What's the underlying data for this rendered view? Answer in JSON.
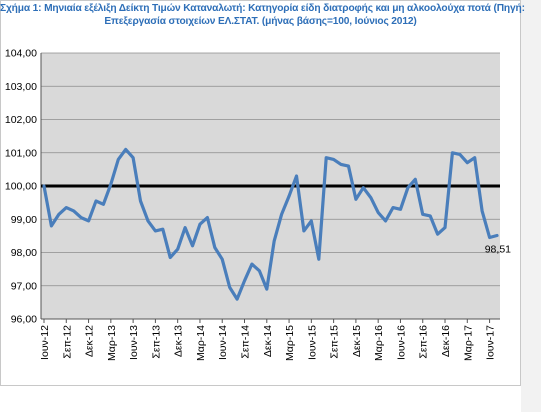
{
  "chart_data": {
    "type": "line",
    "title_lines": [
      "Σχήμα 1: Μηνιαία εξέλιξη Δείκτη Τιμών Καταναλωτή: Κατηγορία είδη διατροφής και μη αλκοολούχα ποτά (Πηγή:",
      "Επεξεργασία στοιχείων ΕΛ.ΣΤΑΤ. (μήνας βάσης=100, Ιούνιος 2012)"
    ],
    "ylim": [
      96,
      104
    ],
    "yticks": [
      "96,00",
      "97,00",
      "98,00",
      "99,00",
      "100,00",
      "101,00",
      "102,00",
      "103,00",
      "104,00"
    ],
    "xtick_labels": [
      "Ιουν-12",
      "Σεπ-12",
      "Δεκ-12",
      "Μαρ-13",
      "Ιουν-13",
      "Σεπ-13",
      "Δεκ-13",
      "Μαρ-14",
      "Ιουν-14",
      "Σεπ-14",
      "Δεκ-14",
      "Μαρ-15",
      "Ιουν-15",
      "Σεπ-15",
      "Δεκ-15",
      "Μαρ-16",
      "Ιουν-16",
      "Σεπ-16",
      "Δεκ-16",
      "Μαρ-17",
      "Ιουν-17"
    ],
    "grid": true,
    "reference_line": 100,
    "series": [
      {
        "color": "#4a7ebb",
        "values": [
          100.0,
          98.8,
          99.15,
          99.35,
          99.25,
          99.05,
          98.95,
          99.55,
          99.45,
          100.05,
          100.8,
          101.1,
          100.85,
          99.55,
          98.95,
          98.65,
          98.7,
          97.85,
          98.1,
          98.75,
          98.2,
          98.85,
          99.05,
          98.15,
          97.8,
          96.95,
          96.6,
          97.15,
          97.65,
          97.45,
          96.9,
          98.35,
          99.15,
          99.7,
          100.3,
          98.65,
          98.95,
          97.8,
          100.85,
          100.8,
          100.65,
          100.6,
          99.6,
          99.95,
          99.65,
          99.2,
          98.95,
          99.35,
          99.3,
          99.95,
          100.2,
          99.15,
          99.1,
          98.55,
          98.75,
          101.0,
          100.95,
          100.7,
          100.85,
          99.25,
          98.45,
          98.51
        ]
      }
    ],
    "data_label": "98,51",
    "colors": {
      "line": "#4a7ebb",
      "reference": "#000000",
      "title": "#2e6fb8",
      "plot_bg": "#d9d9d9",
      "grid": "#8c8c8c"
    }
  }
}
